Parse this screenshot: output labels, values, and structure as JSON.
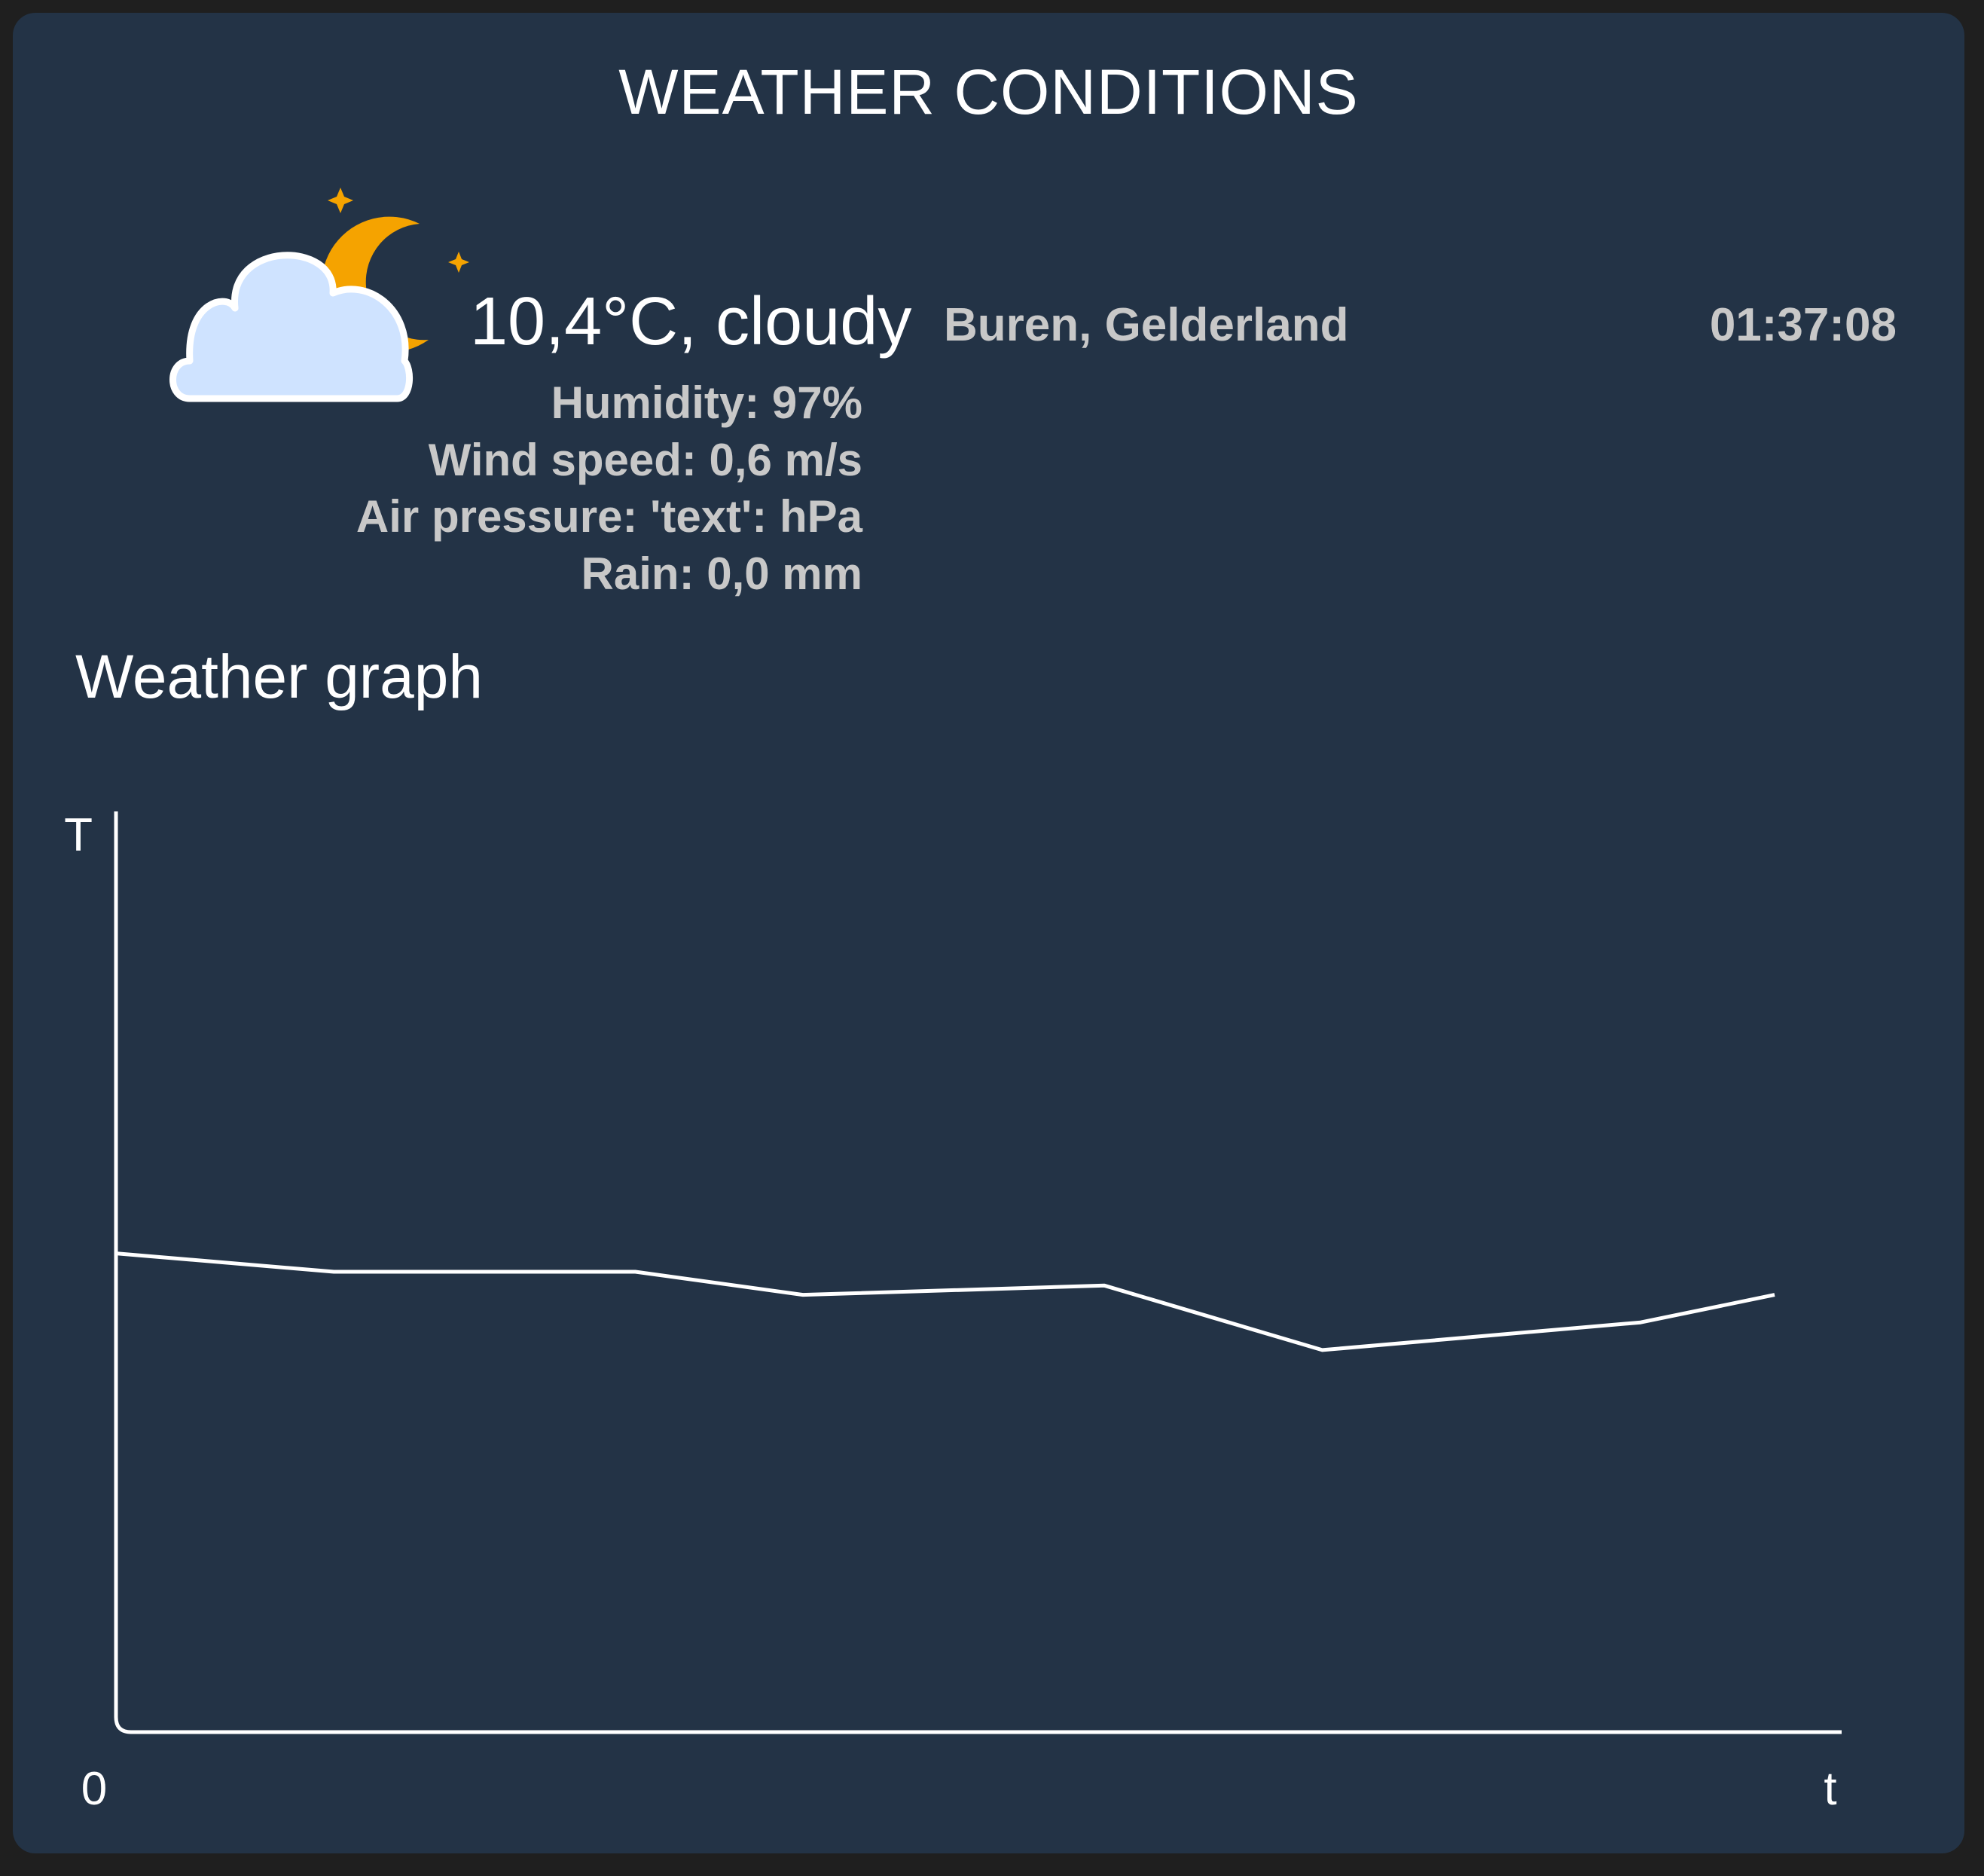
{
  "card": {
    "title": "WEATHER CONDITIONS"
  },
  "current": {
    "icon": "cloudy-night-icon",
    "summary": "10,4°C, cloudy",
    "location": "Buren, Gelderland",
    "time": "01:37:08",
    "humidity": "Humidity: 97%",
    "wind_speed": "Wind speed: 0,6 m/s",
    "air_pressure": "Air pressure: 'text': hPa",
    "rain": "Rain: 0,0 mm"
  },
  "colors": {
    "card_background": "#233346",
    "page_background": "#1f1f1f",
    "moon": "#f5a300",
    "cloud_fill": "#cfe3ff",
    "cloud_outline": "#ffffff",
    "line": "#ffffff",
    "secondary_text": "#c8c8c8"
  },
  "graph": {
    "title": "Weather graph",
    "y_axis_label": "T",
    "x_axis_label": "t",
    "origin_label": "0"
  },
  "chart_data": {
    "type": "line",
    "title": "Weather graph",
    "xlabel": "t",
    "ylabel": "T",
    "x": [
      0,
      0.13,
      0.31,
      0.41,
      0.59,
      0.72,
      0.91,
      0.99
    ],
    "series": [
      {
        "values": [
          10.4,
          10.0,
          10.0,
          9.5,
          9.7,
          8.3,
          8.9,
          9.5
        ]
      }
    ],
    "xlim": [
      0,
      1.03
    ],
    "ylim": [
      0,
      20
    ],
    "grid": false
  }
}
